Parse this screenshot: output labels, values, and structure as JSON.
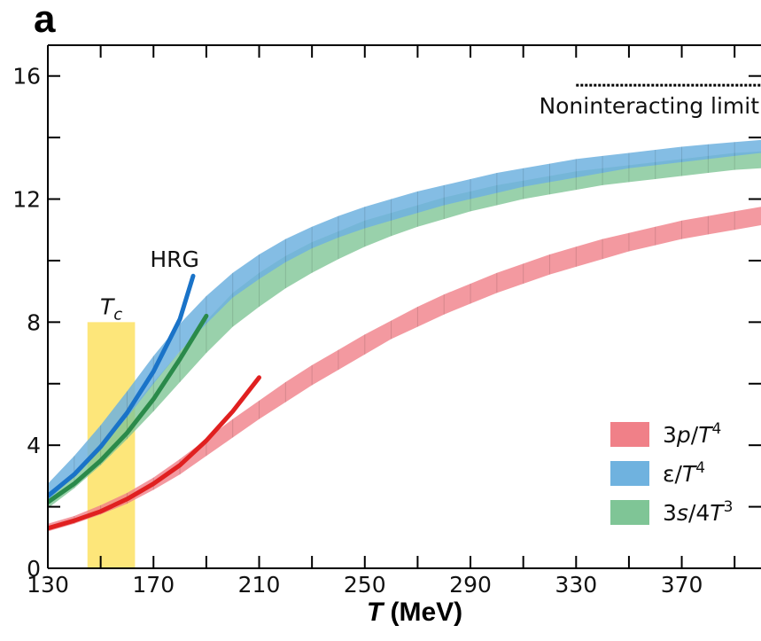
{
  "figure": {
    "panel_label": "a"
  },
  "chart_data": {
    "type": "area",
    "xlabel_var": "T",
    "xlabel_unit": " (MeV)",
    "xlim": [
      130,
      400
    ],
    "ylim": [
      0,
      17
    ],
    "x_ticks": [
      130,
      170,
      210,
      250,
      290,
      330,
      370
    ],
    "y_ticks": [
      0,
      4,
      8,
      12,
      16
    ],
    "legend_placement": "bottom-right",
    "series": [
      {
        "name_parts": [
          "3",
          "p",
          "/",
          "T",
          "4"
        ],
        "color": "#f08088",
        "x": [
          130,
          140,
          150,
          160,
          170,
          180,
          190,
          200,
          210,
          220,
          230,
          240,
          250,
          260,
          270,
          280,
          290,
          300,
          310,
          320,
          330,
          340,
          350,
          360,
          370,
          380,
          390,
          400
        ],
        "lower": [
          1.2,
          1.45,
          1.75,
          2.1,
          2.55,
          3.05,
          3.65,
          4.25,
          4.85,
          5.4,
          5.95,
          6.45,
          6.95,
          7.45,
          7.85,
          8.25,
          8.6,
          8.95,
          9.25,
          9.55,
          9.8,
          10.05,
          10.3,
          10.5,
          10.7,
          10.85,
          11.0,
          11.15
        ],
        "upper": [
          1.45,
          1.7,
          2.05,
          2.45,
          2.95,
          3.55,
          4.2,
          4.85,
          5.45,
          6.05,
          6.6,
          7.1,
          7.6,
          8.05,
          8.5,
          8.9,
          9.25,
          9.6,
          9.9,
          10.2,
          10.45,
          10.7,
          10.9,
          11.1,
          11.3,
          11.45,
          11.6,
          11.75
        ]
      },
      {
        "name_parts": [
          "ε",
          "",
          "/",
          "T",
          "4"
        ],
        "color": "#6fb2df",
        "x": [
          130,
          140,
          150,
          160,
          170,
          180,
          190,
          200,
          210,
          220,
          230,
          240,
          250,
          260,
          270,
          280,
          290,
          300,
          310,
          320,
          330,
          340,
          350,
          360,
          370,
          380,
          390,
          400
        ],
        "lower": [
          2.2,
          3.0,
          3.9,
          4.9,
          6.0,
          7.05,
          7.95,
          8.8,
          9.4,
          9.95,
          10.4,
          10.75,
          11.05,
          11.3,
          11.55,
          11.8,
          12.0,
          12.2,
          12.4,
          12.55,
          12.7,
          12.85,
          13.0,
          13.1,
          13.2,
          13.3,
          13.4,
          13.5
        ],
        "upper": [
          2.75,
          3.65,
          4.65,
          5.75,
          6.9,
          7.95,
          8.85,
          9.6,
          10.2,
          10.7,
          11.1,
          11.45,
          11.75,
          12.0,
          12.25,
          12.45,
          12.65,
          12.85,
          13.0,
          13.15,
          13.3,
          13.4,
          13.5,
          13.6,
          13.7,
          13.78,
          13.85,
          13.92
        ]
      },
      {
        "name_parts": [
          "3",
          "s",
          "/4",
          "T",
          "3"
        ],
        "color": "#7fc596",
        "x": [
          130,
          140,
          150,
          160,
          170,
          180,
          190,
          200,
          210,
          220,
          230,
          240,
          250,
          260,
          270,
          280,
          290,
          300,
          310,
          320,
          330,
          340,
          350,
          360,
          370,
          380,
          390,
          400
        ],
        "lower": [
          1.95,
          2.6,
          3.35,
          4.2,
          5.1,
          6.05,
          7.0,
          7.85,
          8.5,
          9.1,
          9.6,
          10.05,
          10.45,
          10.8,
          11.1,
          11.35,
          11.6,
          11.8,
          12.0,
          12.15,
          12.3,
          12.45,
          12.55,
          12.65,
          12.75,
          12.85,
          12.95,
          13.0
        ],
        "upper": [
          2.4,
          3.15,
          4.0,
          5.0,
          6.05,
          7.05,
          8.05,
          8.95,
          9.6,
          10.15,
          10.6,
          10.95,
          11.3,
          11.55,
          11.8,
          12.05,
          12.25,
          12.45,
          12.6,
          12.75,
          12.9,
          13.0,
          13.1,
          13.2,
          13.3,
          13.4,
          13.5,
          13.55
        ]
      }
    ],
    "hrg_curves": [
      {
        "color": "#1a73c8",
        "x": [
          130,
          140,
          150,
          160,
          170,
          180,
          185
        ],
        "y": [
          2.35,
          3.05,
          3.95,
          5.05,
          6.4,
          8.1,
          9.5
        ]
      },
      {
        "color": "#2a8a4a",
        "x": [
          130,
          140,
          150,
          160,
          170,
          180,
          190
        ],
        "y": [
          2.15,
          2.75,
          3.5,
          4.4,
          5.5,
          6.8,
          8.2
        ]
      },
      {
        "color": "#e02020",
        "x": [
          130,
          140,
          150,
          160,
          170,
          180,
          190,
          200,
          210
        ],
        "y": [
          1.3,
          1.55,
          1.85,
          2.25,
          2.75,
          3.35,
          4.15,
          5.1,
          6.2
        ]
      }
    ],
    "hrg_label": "HRG",
    "hrg_label_at": [
      178,
      9.8
    ],
    "tc_band": {
      "color": "#fde67a",
      "x_range": [
        145,
        163
      ],
      "y_top": 8,
      "label_var": "T",
      "label_sub": "c"
    },
    "noninteracting": {
      "label": "Noninteracting limit",
      "y": 15.7,
      "x_start": 330
    }
  }
}
